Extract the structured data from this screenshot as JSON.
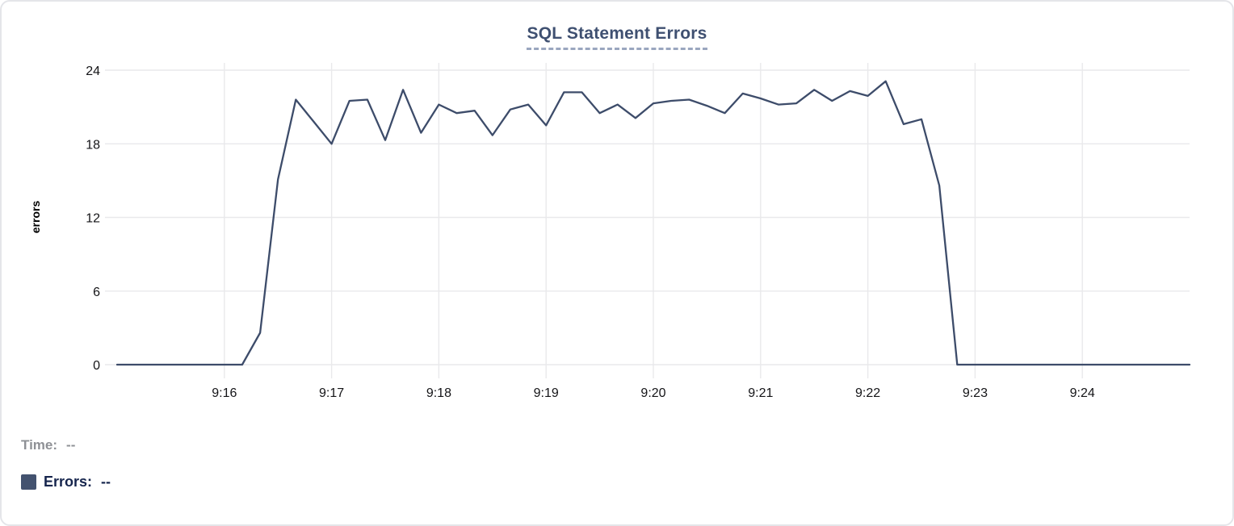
{
  "chart": {
    "title": "SQL Statement Errors",
    "y_axis_label": "errors"
  },
  "readout": {
    "time_label": "Time:",
    "time_value": "--",
    "errors_label": "Errors:",
    "errors_value": "--"
  },
  "colors": {
    "line": "#3d4c6a",
    "title": "#3f5071",
    "title_underline": "#9aa6bf",
    "grid": "#e9e9eb",
    "tick_text": "#141417",
    "axis_label": "#000000",
    "time_text": "#8e9095",
    "errors_text": "#16254d",
    "swatch": "#43526f",
    "card_border": "#e4e5e9"
  },
  "chart_data": {
    "type": "line",
    "title": "SQL Statement Errors",
    "xlabel": "",
    "ylabel": "errors",
    "grid": true,
    "legend_position": "bottom-left",
    "x_ticks": [
      "9:16",
      "9:17",
      "9:18",
      "9:19",
      "9:20",
      "9:21",
      "9:22",
      "9:23",
      "9:24"
    ],
    "y_ticks": [
      0,
      6,
      12,
      18,
      24
    ],
    "x_range": [
      "9:15:00",
      "9:25:00"
    ],
    "ylim": [
      0,
      24
    ],
    "series": [
      {
        "name": "Errors",
        "color": "#3d4c6a",
        "points": [
          [
            "9:15:00",
            0
          ],
          [
            "9:15:10",
            0
          ],
          [
            "9:15:20",
            0
          ],
          [
            "9:15:30",
            0
          ],
          [
            "9:15:40",
            0
          ],
          [
            "9:15:50",
            0
          ],
          [
            "9:16:00",
            0
          ],
          [
            "9:16:10",
            0
          ],
          [
            "9:16:20",
            2.6
          ],
          [
            "9:16:30",
            15.1
          ],
          [
            "9:16:40",
            21.6
          ],
          [
            "9:16:50",
            19.8
          ],
          [
            "9:17:00",
            18.0
          ],
          [
            "9:17:10",
            21.5
          ],
          [
            "9:17:20",
            21.6
          ],
          [
            "9:17:30",
            18.3
          ],
          [
            "9:17:40",
            22.4
          ],
          [
            "9:17:50",
            18.9
          ],
          [
            "9:18:00",
            21.2
          ],
          [
            "9:18:10",
            20.5
          ],
          [
            "9:18:20",
            20.7
          ],
          [
            "9:18:30",
            18.7
          ],
          [
            "9:18:40",
            20.8
          ],
          [
            "9:18:50",
            21.2
          ],
          [
            "9:19:00",
            19.5
          ],
          [
            "9:19:10",
            22.2
          ],
          [
            "9:19:20",
            22.2
          ],
          [
            "9:19:30",
            20.5
          ],
          [
            "9:19:40",
            21.2
          ],
          [
            "9:19:50",
            20.1
          ],
          [
            "9:20:00",
            21.3
          ],
          [
            "9:20:10",
            21.5
          ],
          [
            "9:20:20",
            21.6
          ],
          [
            "9:20:30",
            21.1
          ],
          [
            "9:20:40",
            20.5
          ],
          [
            "9:20:50",
            22.1
          ],
          [
            "9:21:00",
            21.7
          ],
          [
            "9:21:10",
            21.2
          ],
          [
            "9:21:20",
            21.3
          ],
          [
            "9:21:30",
            22.4
          ],
          [
            "9:21:40",
            21.5
          ],
          [
            "9:21:50",
            22.3
          ],
          [
            "9:22:00",
            21.9
          ],
          [
            "9:22:10",
            23.1
          ],
          [
            "9:22:20",
            19.6
          ],
          [
            "9:22:30",
            20.0
          ],
          [
            "9:22:40",
            14.6
          ],
          [
            "9:22:50",
            0
          ],
          [
            "9:23:00",
            0
          ],
          [
            "9:23:10",
            0
          ],
          [
            "9:23:20",
            0
          ],
          [
            "9:23:30",
            0
          ],
          [
            "9:23:40",
            0
          ],
          [
            "9:23:50",
            0
          ],
          [
            "9:24:00",
            0
          ],
          [
            "9:24:10",
            0
          ],
          [
            "9:24:20",
            0
          ],
          [
            "9:24:30",
            0
          ],
          [
            "9:24:40",
            0
          ],
          [
            "9:24:50",
            0
          ],
          [
            "9:25:00",
            0
          ]
        ]
      }
    ]
  }
}
